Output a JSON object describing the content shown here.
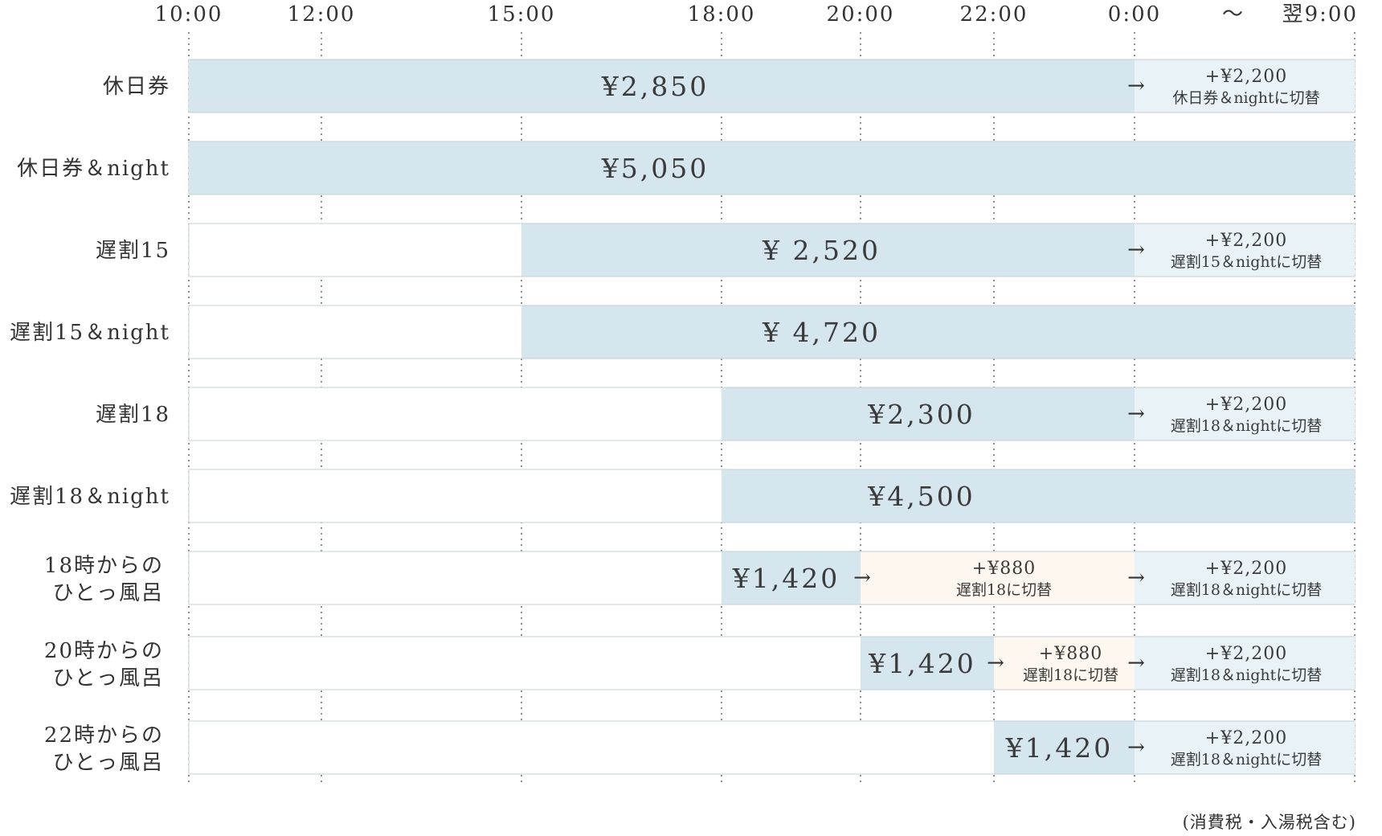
{
  "chart_data": {
    "type": "bar",
    "subtype": "horizontal-timeline",
    "grid": "dotted vertical lines at each time tick",
    "time_axis": {
      "ticks": [
        {
          "hour": 10,
          "label": "10:00"
        },
        {
          "hour": 12,
          "label": "12:00"
        },
        {
          "hour": 15,
          "label": "15:00"
        },
        {
          "hour": 18,
          "label": "18:00"
        },
        {
          "hour": 20,
          "label": "20:00"
        },
        {
          "hour": 22,
          "label": "22:00"
        },
        {
          "hour": 24,
          "label": "0:00"
        },
        {
          "hour": 33,
          "label": "翌9:00"
        }
      ],
      "range_separator": "〜",
      "range": [
        10,
        33
      ]
    },
    "colors": {
      "ticket": "#d5e6ef",
      "night_upgrade": "#e9f2f7",
      "late_upgrade": "#fdf7ef",
      "row_border": "#c4cfd5",
      "grid": "#555555"
    },
    "rows": [
      {
        "label": [
          "休日券"
        ],
        "segments": [
          {
            "start": 10,
            "end": 24,
            "kind": "ticket",
            "price": "¥2,850"
          },
          {
            "start": 24,
            "end": 33,
            "kind": "night_upgrade",
            "amount": "+¥2,200",
            "note": "休日券＆nightに切替"
          }
        ]
      },
      {
        "label": [
          "休日券＆night"
        ],
        "segments": [
          {
            "start": 10,
            "end": 33,
            "kind": "ticket",
            "price": "¥5,050"
          }
        ]
      },
      {
        "label": [
          "遅割15"
        ],
        "segments": [
          {
            "start": 15,
            "end": 24,
            "kind": "ticket",
            "price": "¥ 2,520"
          },
          {
            "start": 24,
            "end": 33,
            "kind": "night_upgrade",
            "amount": "+¥2,200",
            "note": "遅割15＆nightに切替"
          }
        ]
      },
      {
        "label": [
          "遅割15＆night"
        ],
        "segments": [
          {
            "start": 15,
            "end": 33,
            "kind": "ticket",
            "price": "¥ 4,720"
          }
        ]
      },
      {
        "label": [
          "遅割18"
        ],
        "segments": [
          {
            "start": 18,
            "end": 24,
            "kind": "ticket",
            "price": "¥2,300"
          },
          {
            "start": 24,
            "end": 33,
            "kind": "night_upgrade",
            "amount": "+¥2,200",
            "note": "遅割18＆nightに切替"
          }
        ]
      },
      {
        "label": [
          "遅割18＆night"
        ],
        "segments": [
          {
            "start": 18,
            "end": 33,
            "kind": "ticket",
            "price": "¥4,500"
          }
        ]
      },
      {
        "label": [
          "18時からの",
          "ひとっ風呂"
        ],
        "segments": [
          {
            "start": 18,
            "end": 20,
            "kind": "ticket",
            "price": "¥1,420"
          },
          {
            "start": 20,
            "end": 24,
            "kind": "late_upgrade",
            "amount": "+¥880",
            "note": "遅割18に切替"
          },
          {
            "start": 24,
            "end": 33,
            "kind": "night_upgrade",
            "amount": "+¥2,200",
            "note": "遅割18＆nightに切替"
          }
        ]
      },
      {
        "label": [
          "20時からの",
          "ひとっ風呂"
        ],
        "segments": [
          {
            "start": 20,
            "end": 22,
            "kind": "ticket",
            "price": "¥1,420"
          },
          {
            "start": 22,
            "end": 24,
            "kind": "late_upgrade",
            "amount": "+¥880",
            "note": "遅割18に切替"
          },
          {
            "start": 24,
            "end": 33,
            "kind": "night_upgrade",
            "amount": "+¥2,200",
            "note": "遅割18＆nightに切替"
          }
        ]
      },
      {
        "label": [
          "22時からの",
          "ひとっ風呂"
        ],
        "segments": [
          {
            "start": 22,
            "end": 24,
            "kind": "ticket",
            "price": "¥1,420"
          },
          {
            "start": 24,
            "end": 33,
            "kind": "night_upgrade",
            "amount": "+¥2,200",
            "note": "遅割18＆nightに切替"
          }
        ]
      }
    ],
    "arrow": "→",
    "note": "(消費税・入湯税含む)"
  }
}
